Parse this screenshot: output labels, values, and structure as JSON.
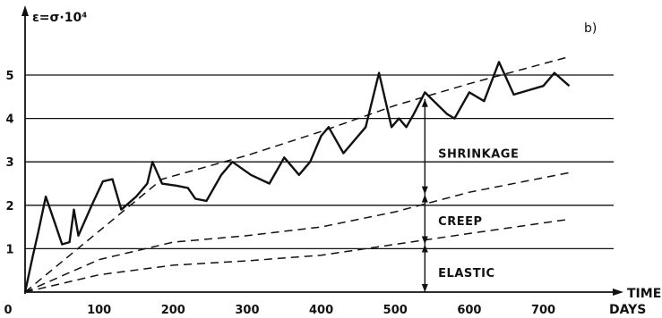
{
  "chart_data": {
    "type": "line",
    "panel_label": "b)",
    "ylabel": "ε=σ·10⁴",
    "xlabel": "TIME",
    "x_unit": "DAYS",
    "xlim": [
      0,
      740
    ],
    "ylim": [
      0,
      5.8
    ],
    "xticks": [
      0,
      100,
      200,
      300,
      400,
      500,
      600,
      700
    ],
    "yticks": [
      1,
      2,
      3,
      4,
      5
    ],
    "grid": "horizontal",
    "series": [
      {
        "style": "solid",
        "points": [
          [
            0,
            0
          ],
          [
            10,
            0.8
          ],
          [
            18,
            1.4
          ],
          [
            28,
            2.2
          ],
          [
            40,
            1.6
          ],
          [
            50,
            1.1
          ],
          [
            60,
            1.15
          ],
          [
            66,
            1.9
          ],
          [
            72,
            1.3
          ],
          [
            90,
            2.0
          ],
          [
            105,
            2.55
          ],
          [
            118,
            2.6
          ],
          [
            130,
            1.9
          ],
          [
            150,
            2.2
          ],
          [
            165,
            2.5
          ],
          [
            172,
            3.0
          ],
          [
            185,
            2.5
          ],
          [
            205,
            2.45
          ],
          [
            220,
            2.4
          ],
          [
            230,
            2.15
          ],
          [
            245,
            2.1
          ],
          [
            265,
            2.7
          ],
          [
            280,
            3.0
          ],
          [
            305,
            2.7
          ],
          [
            330,
            2.5
          ],
          [
            350,
            3.1
          ],
          [
            370,
            2.7
          ],
          [
            385,
            3.0
          ],
          [
            400,
            3.6
          ],
          [
            410,
            3.8
          ],
          [
            430,
            3.2
          ],
          [
            460,
            3.8
          ],
          [
            478,
            5.05
          ],
          [
            495,
            3.8
          ],
          [
            505,
            4.0
          ],
          [
            515,
            3.8
          ],
          [
            525,
            4.1
          ],
          [
            540,
            4.6
          ],
          [
            570,
            4.1
          ],
          [
            580,
            4.0
          ],
          [
            600,
            4.6
          ],
          [
            620,
            4.4
          ],
          [
            640,
            5.3
          ],
          [
            660,
            4.55
          ],
          [
            700,
            4.75
          ],
          [
            715,
            5.05
          ],
          [
            735,
            4.75
          ]
        ]
      },
      {
        "style": "dashed",
        "points": [
          [
            0,
            0
          ],
          [
            185,
            2.6
          ],
          [
            300,
            3.15
          ],
          [
            400,
            3.7
          ],
          [
            500,
            4.3
          ],
          [
            600,
            4.8
          ],
          [
            730,
            5.4
          ]
        ]
      },
      {
        "style": "dashed",
        "points": [
          [
            0,
            0
          ],
          [
            100,
            0.75
          ],
          [
            200,
            1.15
          ],
          [
            300,
            1.3
          ],
          [
            400,
            1.5
          ],
          [
            500,
            1.85
          ],
          [
            600,
            2.3
          ],
          [
            735,
            2.75
          ]
        ]
      },
      {
        "style": "dashed",
        "points": [
          [
            0,
            0
          ],
          [
            100,
            0.4
          ],
          [
            200,
            0.62
          ],
          [
            300,
            0.72
          ],
          [
            400,
            0.85
          ],
          [
            500,
            1.1
          ],
          [
            600,
            1.35
          ],
          [
            735,
            1.68
          ]
        ]
      }
    ],
    "annotations": [
      {
        "text": "SHRINKAGE",
        "x": 558,
        "y": 3.2
      },
      {
        "text": "CREEP",
        "x": 558,
        "y": 1.65
      },
      {
        "text": "ELASTIC",
        "x": 558,
        "y": 0.45
      }
    ],
    "brackets": [
      {
        "x": 540,
        "from": 2.25,
        "to": 4.45
      },
      {
        "x": 540,
        "from": 1.1,
        "to": 2.25
      },
      {
        "x": 540,
        "from": 0,
        "to": 1.1
      }
    ]
  }
}
